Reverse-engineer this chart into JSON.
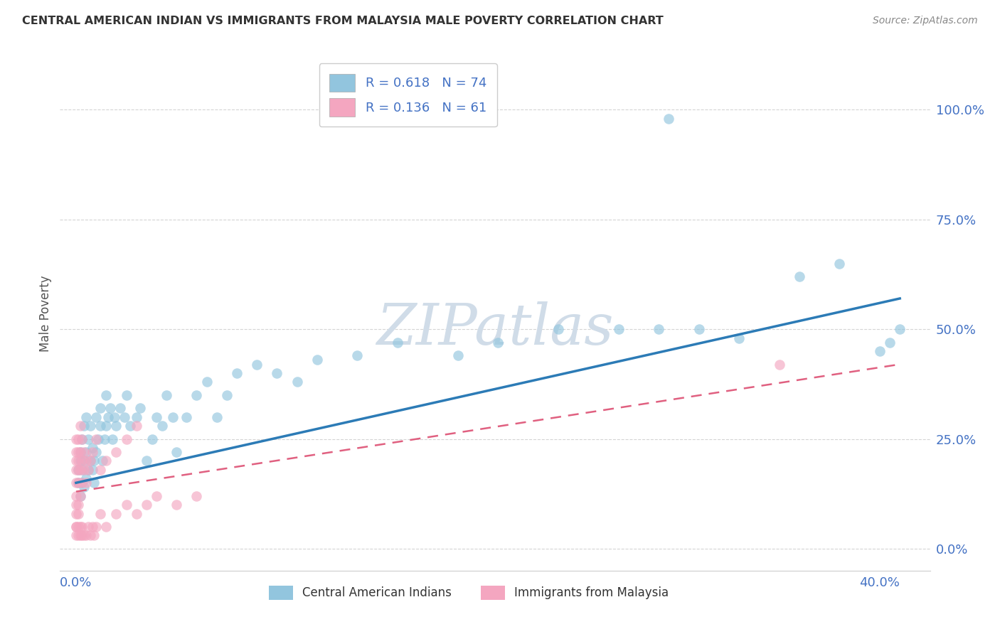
{
  "title": "CENTRAL AMERICAN INDIAN VS IMMIGRANTS FROM MALAYSIA MALE POVERTY CORRELATION CHART",
  "source": "Source: ZipAtlas.com",
  "xlabel_ticks": [
    "0.0%",
    "",
    "",
    "",
    "40.0%"
  ],
  "xlabel_tick_vals": [
    0.0,
    0.1,
    0.2,
    0.3,
    0.4
  ],
  "ylabel": "Male Poverty",
  "ylabel_ticks": [
    "0.0%",
    "25.0%",
    "50.0%",
    "75.0%",
    "100.0%"
  ],
  "ylabel_tick_vals": [
    0.0,
    0.25,
    0.5,
    0.75,
    1.0
  ],
  "xlim": [
    -0.008,
    0.425
  ],
  "ylim": [
    -0.05,
    1.12
  ],
  "R_blue": "0.618",
  "N_blue": "74",
  "R_pink": "0.136",
  "N_pink": "61",
  "blue_color": "#92c5de",
  "blue_line_color": "#2c7bb6",
  "pink_color": "#f4a6c0",
  "pink_line_color": "#e06080",
  "watermark_color": "#d0dce8",
  "legend_label_blue": "Central American Indians",
  "legend_label_pink": "Immigrants from Malaysia",
  "background_color": "#ffffff",
  "grid_color": "#d0d0d0",
  "tick_color": "#4472c4",
  "legend_text_color": "#333333",
  "legend_R_N_color": "#4472c4",
  "blue_scatter_x": [
    0.001,
    0.001,
    0.002,
    0.002,
    0.002,
    0.003,
    0.003,
    0.003,
    0.004,
    0.004,
    0.004,
    0.005,
    0.005,
    0.005,
    0.006,
    0.006,
    0.007,
    0.007,
    0.008,
    0.008,
    0.009,
    0.009,
    0.01,
    0.01,
    0.011,
    0.012,
    0.012,
    0.013,
    0.014,
    0.015,
    0.015,
    0.016,
    0.017,
    0.018,
    0.019,
    0.02,
    0.022,
    0.024,
    0.025,
    0.027,
    0.03,
    0.032,
    0.035,
    0.038,
    0.04,
    0.043,
    0.045,
    0.048,
    0.05,
    0.055,
    0.06,
    0.065,
    0.07,
    0.075,
    0.08,
    0.09,
    0.1,
    0.11,
    0.12,
    0.14,
    0.16,
    0.19,
    0.21,
    0.24,
    0.27,
    0.29,
    0.295,
    0.31,
    0.33,
    0.36,
    0.38,
    0.4,
    0.405,
    0.41
  ],
  "blue_scatter_y": [
    0.15,
    0.18,
    0.12,
    0.2,
    0.22,
    0.15,
    0.18,
    0.25,
    0.14,
    0.2,
    0.28,
    0.16,
    0.22,
    0.3,
    0.18,
    0.25,
    0.2,
    0.28,
    0.18,
    0.23,
    0.15,
    0.2,
    0.22,
    0.3,
    0.25,
    0.28,
    0.32,
    0.2,
    0.25,
    0.28,
    0.35,
    0.3,
    0.32,
    0.25,
    0.3,
    0.28,
    0.32,
    0.3,
    0.35,
    0.28,
    0.3,
    0.32,
    0.2,
    0.25,
    0.3,
    0.28,
    0.35,
    0.3,
    0.22,
    0.3,
    0.35,
    0.38,
    0.3,
    0.35,
    0.4,
    0.42,
    0.4,
    0.38,
    0.43,
    0.44,
    0.47,
    0.44,
    0.47,
    0.5,
    0.5,
    0.5,
    0.98,
    0.5,
    0.48,
    0.62,
    0.65,
    0.45,
    0.47,
    0.5
  ],
  "pink_scatter_x": [
    0.0,
    0.0,
    0.0,
    0.0,
    0.0,
    0.0,
    0.0,
    0.0,
    0.0,
    0.001,
    0.001,
    0.001,
    0.001,
    0.001,
    0.001,
    0.002,
    0.002,
    0.002,
    0.002,
    0.003,
    0.003,
    0.003,
    0.004,
    0.004,
    0.005,
    0.005,
    0.006,
    0.007,
    0.008,
    0.01,
    0.012,
    0.015,
    0.02,
    0.025,
    0.03,
    0.0,
    0.0,
    0.001,
    0.001,
    0.001,
    0.002,
    0.002,
    0.003,
    0.003,
    0.004,
    0.005,
    0.006,
    0.007,
    0.008,
    0.009,
    0.01,
    0.012,
    0.015,
    0.02,
    0.025,
    0.03,
    0.035,
    0.04,
    0.05,
    0.06,
    0.35
  ],
  "pink_scatter_y": [
    0.05,
    0.08,
    0.1,
    0.12,
    0.15,
    0.18,
    0.2,
    0.22,
    0.25,
    0.1,
    0.15,
    0.18,
    0.2,
    0.22,
    0.25,
    0.12,
    0.18,
    0.22,
    0.28,
    0.15,
    0.2,
    0.25,
    0.18,
    0.22,
    0.15,
    0.2,
    0.18,
    0.2,
    0.22,
    0.25,
    0.18,
    0.2,
    0.22,
    0.25,
    0.28,
    0.03,
    0.05,
    0.03,
    0.05,
    0.08,
    0.03,
    0.05,
    0.03,
    0.05,
    0.03,
    0.03,
    0.05,
    0.03,
    0.05,
    0.03,
    0.05,
    0.08,
    0.05,
    0.08,
    0.1,
    0.08,
    0.1,
    0.12,
    0.1,
    0.12,
    0.42
  ],
  "blue_trend_x0": 0.0,
  "blue_trend_x1": 0.41,
  "blue_trend_y0": 0.15,
  "blue_trend_y1": 0.57,
  "pink_trend_x0": 0.0,
  "pink_trend_x1": 0.41,
  "pink_trend_y0": 0.13,
  "pink_trend_y1": 0.42
}
